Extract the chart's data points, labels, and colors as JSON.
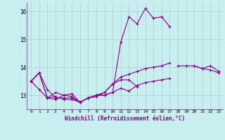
{
  "xlabel": "Windchill (Refroidissement éolien,°C)",
  "background_color": "#c8eef0",
  "line_color": "#880088",
  "grid_color": "#aacccc",
  "x": [
    0,
    1,
    2,
    3,
    4,
    5,
    6,
    7,
    8,
    9,
    10,
    11,
    12,
    13,
    14,
    15,
    16,
    17,
    18,
    19,
    20,
    21,
    22,
    23
  ],
  "series1": [
    13.5,
    13.8,
    13.2,
    12.9,
    12.9,
    12.9,
    12.75,
    12.9,
    13.0,
    13.0,
    13.1,
    14.9,
    15.8,
    15.55,
    16.1,
    15.75,
    15.8,
    15.45,
    null,
    null,
    null,
    null,
    null,
    null
  ],
  "series2": [
    13.5,
    13.8,
    12.9,
    12.95,
    12.85,
    12.85,
    12.75,
    12.9,
    13.0,
    13.0,
    13.1,
    13.25,
    13.15,
    13.35,
    13.45,
    13.5,
    13.55,
    13.6,
    null,
    null,
    null,
    null,
    null,
    null
  ],
  "series3": [
    13.5,
    13.8,
    12.9,
    13.1,
    13.0,
    13.05,
    12.75,
    12.9,
    13.0,
    13.1,
    13.4,
    13.65,
    13.75,
    13.85,
    13.95,
    14.0,
    14.05,
    14.15,
    null,
    null,
    null,
    null,
    null,
    null
  ],
  "series4": [
    13.5,
    13.2,
    12.9,
    12.85,
    13.0,
    12.95,
    12.75,
    12.9,
    12.95,
    13.1,
    13.4,
    13.55,
    13.55,
    13.3,
    null,
    null,
    null,
    null,
    null,
    null,
    null,
    null,
    null,
    null
  ],
  "series5": [
    null,
    null,
    null,
    null,
    null,
    null,
    null,
    null,
    null,
    null,
    null,
    null,
    null,
    null,
    null,
    null,
    null,
    null,
    14.05,
    14.05,
    14.05,
    13.95,
    14.05,
    13.85
  ],
  "series6": [
    null,
    null,
    null,
    null,
    null,
    null,
    null,
    null,
    null,
    null,
    null,
    null,
    null,
    null,
    null,
    null,
    null,
    null,
    null,
    null,
    14.05,
    13.95,
    13.9,
    13.8
  ],
  "ylim": [
    12.5,
    16.3
  ],
  "yticks": [
    13,
    14,
    15,
    16
  ],
  "xlim": [
    -0.5,
    23.5
  ]
}
